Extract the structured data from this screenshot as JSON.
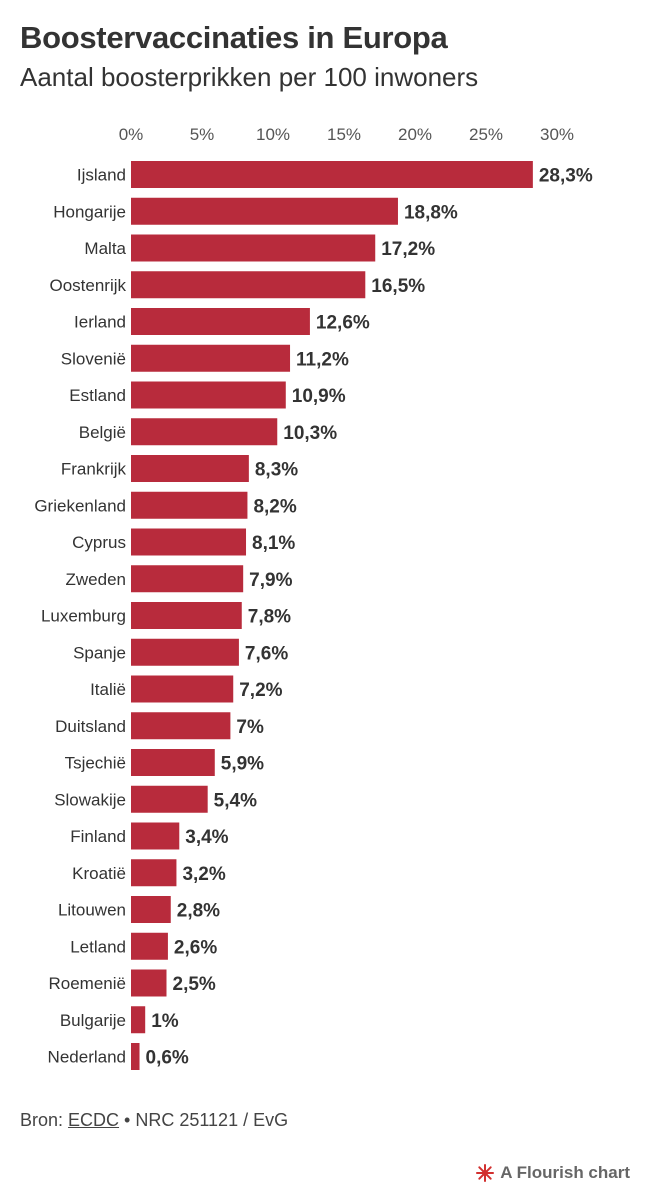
{
  "header": {
    "title": "Boostervaccinaties in Europa",
    "subtitle": "Aantal boosterprikken per 100 inwoners"
  },
  "chart_data": {
    "type": "bar",
    "orientation": "horizontal",
    "categories": [
      "Ijsland",
      "Hongarije",
      "Malta",
      "Oostenrijk",
      "Ierland",
      "Slovenië",
      "Estland",
      "België",
      "Frankrijk",
      "Griekenland",
      "Cyprus",
      "Zweden",
      "Luxemburg",
      "Spanje",
      "Italië",
      "Duitsland",
      "Tsjechië",
      "Slowakije",
      "Finland",
      "Kroatië",
      "Litouwen",
      "Letland",
      "Roemenië",
      "Bulgarije",
      "Nederland"
    ],
    "values": [
      28.3,
      18.8,
      17.2,
      16.5,
      12.6,
      11.2,
      10.9,
      10.3,
      8.3,
      8.2,
      8.1,
      7.9,
      7.8,
      7.6,
      7.2,
      7,
      5.9,
      5.4,
      3.4,
      3.2,
      2.8,
      2.6,
      2.5,
      1,
      0.6
    ],
    "value_labels": [
      "28,3%",
      "18,8%",
      "17,2%",
      "16,5%",
      "12,6%",
      "11,2%",
      "10,9%",
      "10,3%",
      "8,3%",
      "8,2%",
      "8,1%",
      "7,9%",
      "7,8%",
      "7,6%",
      "7,2%",
      "7%",
      "5,9%",
      "5,4%",
      "3,4%",
      "3,2%",
      "2,8%",
      "2,6%",
      "2,5%",
      "1%",
      "0,6%"
    ],
    "x_ticks": [
      0,
      5,
      10,
      15,
      20,
      25,
      30
    ],
    "x_tick_labels": [
      "0%",
      "5%",
      "10%",
      "15%",
      "20%",
      "25%",
      "30%"
    ],
    "xlim": [
      0,
      30
    ],
    "axis_position": "top",
    "grid": false,
    "bar_color": "#b82b3c"
  },
  "footer": {
    "source_prefix": "Bron: ",
    "source_link": "ECDC",
    "source_suffix": " • NRC 251121 / EvG",
    "credit": "A Flourish chart",
    "credit_icon": "flourish-logo-icon",
    "credit_icon_color": "#d2302f"
  }
}
